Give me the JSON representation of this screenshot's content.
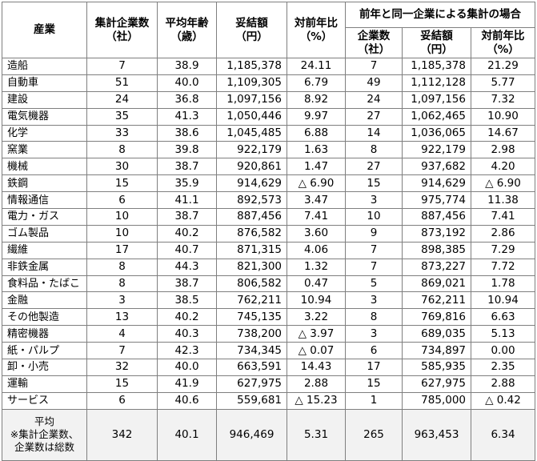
{
  "headers": {
    "industry": "産業",
    "companies": [
      "集計企業数",
      "（社）"
    ],
    "avg_age": [
      "平均年齢",
      "（歳）"
    ],
    "amount": [
      "妥結額",
      "（円）"
    ],
    "yoy": [
      "対前年比",
      "（%）"
    ],
    "group_title": "前年と同一企業による集計の場合",
    "g_companies": [
      "企業数",
      "（社）"
    ],
    "g_amount": [
      "妥結額",
      "（円）"
    ],
    "g_yoy": [
      "対前年比",
      "（%）"
    ]
  },
  "rows": [
    {
      "industry": "造船",
      "companies": "7",
      "age": "38.9",
      "amount": "1,185,378",
      "yoy": "24.11",
      "g_companies": "7",
      "g_amount": "1,185,378",
      "g_yoy": "21.29"
    },
    {
      "industry": "自動車",
      "companies": "51",
      "age": "40.0",
      "amount": "1,109,305",
      "yoy": "6.79",
      "g_companies": "49",
      "g_amount": "1,112,128",
      "g_yoy": "5.77"
    },
    {
      "industry": "建設",
      "companies": "24",
      "age": "36.8",
      "amount": "1,097,156",
      "yoy": "8.92",
      "g_companies": "24",
      "g_amount": "1,097,156",
      "g_yoy": "7.32"
    },
    {
      "industry": "電気機器",
      "companies": "35",
      "age": "41.3",
      "amount": "1,050,446",
      "yoy": "9.97",
      "g_companies": "27",
      "g_amount": "1,062,465",
      "g_yoy": "10.90"
    },
    {
      "industry": "化学",
      "companies": "33",
      "age": "38.6",
      "amount": "1,045,485",
      "yoy": "6.88",
      "g_companies": "14",
      "g_amount": "1,036,065",
      "g_yoy": "14.67"
    },
    {
      "industry": "窯業",
      "companies": "8",
      "age": "39.8",
      "amount": "922,179",
      "yoy": "1.63",
      "g_companies": "8",
      "g_amount": "922,179",
      "g_yoy": "2.98"
    },
    {
      "industry": "機械",
      "companies": "30",
      "age": "38.7",
      "amount": "920,861",
      "yoy": "1.47",
      "g_companies": "27",
      "g_amount": "937,682",
      "g_yoy": "4.20"
    },
    {
      "industry": "鉄鋼",
      "companies": "15",
      "age": "35.9",
      "amount": "914,629",
      "yoy": "△ 6.90",
      "g_companies": "15",
      "g_amount": "914,629",
      "g_yoy": "△ 6.90"
    },
    {
      "industry": "情報通信",
      "companies": "6",
      "age": "41.1",
      "amount": "892,573",
      "yoy": "3.47",
      "g_companies": "3",
      "g_amount": "975,774",
      "g_yoy": "11.38"
    },
    {
      "industry": "電力・ガス",
      "companies": "10",
      "age": "38.7",
      "amount": "887,456",
      "yoy": "7.41",
      "g_companies": "10",
      "g_amount": "887,456",
      "g_yoy": "7.41"
    },
    {
      "industry": "ゴム製品",
      "companies": "10",
      "age": "40.2",
      "amount": "876,582",
      "yoy": "3.60",
      "g_companies": "9",
      "g_amount": "873,192",
      "g_yoy": "2.86"
    },
    {
      "industry": "繊維",
      "companies": "17",
      "age": "40.7",
      "amount": "871,315",
      "yoy": "4.06",
      "g_companies": "7",
      "g_amount": "898,385",
      "g_yoy": "7.29"
    },
    {
      "industry": "非鉄金属",
      "companies": "8",
      "age": "44.3",
      "amount": "821,300",
      "yoy": "1.32",
      "g_companies": "7",
      "g_amount": "873,227",
      "g_yoy": "7.72"
    },
    {
      "industry": "食料品・たばこ",
      "companies": "8",
      "age": "38.7",
      "amount": "806,582",
      "yoy": "0.47",
      "g_companies": "5",
      "g_amount": "869,021",
      "g_yoy": "1.78"
    },
    {
      "industry": "金融",
      "companies": "3",
      "age": "38.5",
      "amount": "762,211",
      "yoy": "10.94",
      "g_companies": "3",
      "g_amount": "762,211",
      "g_yoy": "10.94"
    },
    {
      "industry": "その他製造",
      "companies": "13",
      "age": "40.2",
      "amount": "745,135",
      "yoy": "3.22",
      "g_companies": "8",
      "g_amount": "769,816",
      "g_yoy": "6.63"
    },
    {
      "industry": "精密機器",
      "companies": "4",
      "age": "40.3",
      "amount": "738,200",
      "yoy": "△ 3.97",
      "g_companies": "3",
      "g_amount": "689,035",
      "g_yoy": "5.13"
    },
    {
      "industry": "紙・パルプ",
      "companies": "7",
      "age": "42.3",
      "amount": "734,345",
      "yoy": "△ 0.07",
      "g_companies": "6",
      "g_amount": "734,897",
      "g_yoy": "0.00"
    },
    {
      "industry": "卸・小売",
      "companies": "32",
      "age": "40.0",
      "amount": "663,591",
      "yoy": "14.43",
      "g_companies": "17",
      "g_amount": "585,935",
      "g_yoy": "2.35"
    },
    {
      "industry": "運輸",
      "companies": "15",
      "age": "41.9",
      "amount": "627,975",
      "yoy": "2.88",
      "g_companies": "15",
      "g_amount": "627,975",
      "g_yoy": "2.88"
    },
    {
      "industry": "サービス",
      "companies": "6",
      "age": "40.6",
      "amount": "559,681",
      "yoy": "△ 15.23",
      "g_companies": "1",
      "g_amount": "785,000",
      "g_yoy": "△ 0.42"
    }
  ],
  "average": {
    "label": [
      "平均",
      "※集計企業数、",
      "企業数は総数"
    ],
    "companies": "342",
    "age": "40.1",
    "amount": "946,469",
    "yoy": "5.31",
    "g_companies": "265",
    "g_amount": "963,453",
    "g_yoy": "6.34"
  },
  "colors": {
    "border": "#7f7f7f",
    "average_row_bg": "#f2f2f2"
  }
}
